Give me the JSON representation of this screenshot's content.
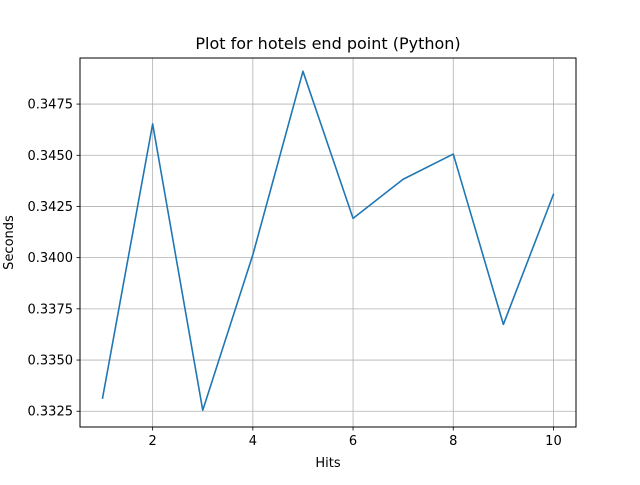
{
  "chart_data": {
    "type": "line",
    "title": "Plot for hotels end point (Python)",
    "xlabel": "Hits",
    "ylabel": "Seconds",
    "xlim": [
      0.55,
      10.45
    ],
    "ylim": [
      0.33173,
      0.34975
    ],
    "xticks": [
      2,
      4,
      6,
      8,
      10
    ],
    "xtick_labels": [
      "2",
      "4",
      "6",
      "8",
      "10"
    ],
    "yticks": [
      0.3325,
      0.335,
      0.3375,
      0.34,
      0.3425,
      0.345,
      0.3475
    ],
    "ytick_labels": [
      "0.3325",
      "0.3350",
      "0.3375",
      "0.3400",
      "0.3425",
      "0.3450",
      "0.3475"
    ],
    "grid": true,
    "series": [
      {
        "color": "#1f77b4",
        "x": [
          1,
          2,
          3,
          4,
          5,
          6,
          7,
          8,
          9,
          10
        ],
        "y": [
          0.33314,
          0.34653,
          0.33255,
          0.34014,
          0.3491,
          0.34192,
          0.34383,
          0.34506,
          0.33674,
          0.34309
        ]
      }
    ]
  }
}
